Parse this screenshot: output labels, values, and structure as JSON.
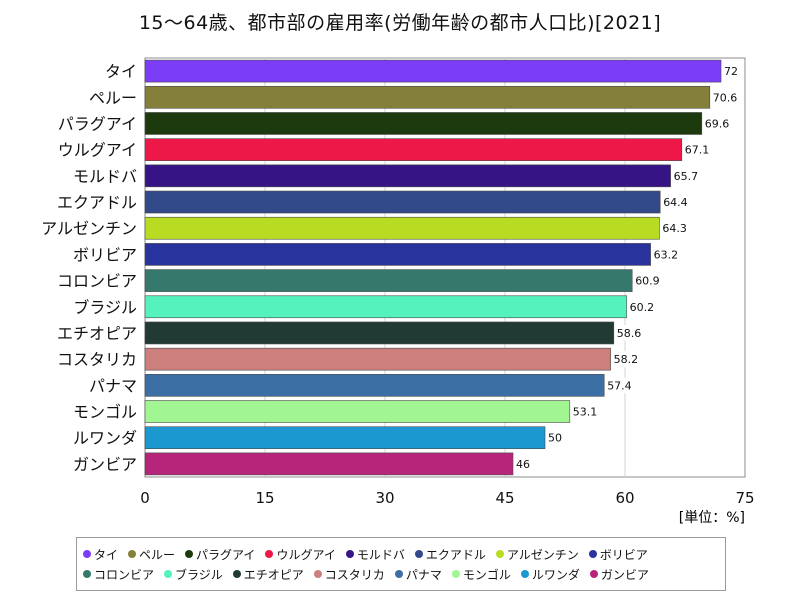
{
  "chart_data": {
    "type": "bar",
    "orientation": "horizontal",
    "title": "15～64歳、都市部の雇用率(労働年齢の都市人口比)[2021]",
    "unit_label": "[単位：%]",
    "categories": [
      "タイ",
      "ペルー",
      "パラグアイ",
      "ウルグアイ",
      "モルドバ",
      "エクアドル",
      "アルゼンチン",
      "ボリビア",
      "コロンビア",
      "ブラジル",
      "エチオピア",
      "コスタリカ",
      "パナマ",
      "モンゴル",
      "ルワンダ",
      "ガンビア"
    ],
    "values": [
      72,
      70.6,
      69.6,
      67.1,
      65.7,
      64.4,
      64.3,
      63.2,
      60.9,
      60.2,
      58.6,
      58.2,
      57.4,
      53.1,
      50,
      46
    ],
    "value_labels": [
      "72",
      "70.6",
      "69.6",
      "67.1",
      "65.7",
      "64.4",
      "64.3",
      "63.2",
      "60.9",
      "60.2",
      "58.6",
      "58.2",
      "57.4",
      "53.1",
      "50",
      "46"
    ],
    "colors": [
      "#7b3df5",
      "#857f3c",
      "#1d3a0e",
      "#ee1848",
      "#361486",
      "#32498a",
      "#b8dc22",
      "#28339e",
      "#35796d",
      "#55f2be",
      "#223a34",
      "#cc7f7c",
      "#3c6fa3",
      "#a2f593",
      "#1c98d1",
      "#b6257a"
    ],
    "xlim": [
      0,
      75
    ],
    "xticks": [
      0,
      15,
      30,
      45,
      60,
      75
    ],
    "xtick_labels": [
      "0",
      "15",
      "30",
      "45",
      "60",
      "75"
    ],
    "grid": true,
    "legend": "bottom"
  }
}
